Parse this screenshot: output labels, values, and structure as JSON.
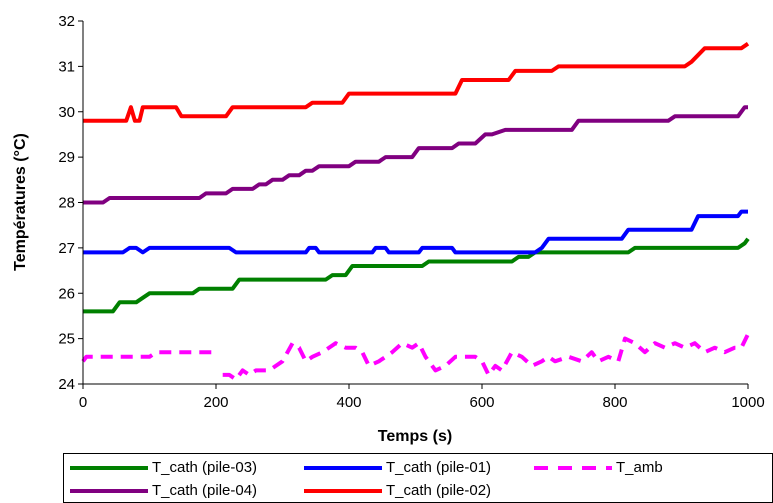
{
  "chart_data": {
    "type": "line",
    "title": "",
    "xlabel": "Temps (s)",
    "ylabel": "Températures (°C)",
    "xlim": [
      0,
      1000
    ],
    "ylim": [
      24,
      32
    ],
    "xticks": [
      "0",
      "200",
      "400",
      "600",
      "800",
      "1000"
    ],
    "yticks": [
      "24",
      "25",
      "26",
      "27",
      "28",
      "29",
      "30",
      "31",
      "32"
    ],
    "grid": false,
    "legend_position": "bottom",
    "series": [
      {
        "name": "T_cath (pile-03)",
        "color": "#008000",
        "style": "solid",
        "x": [
          0,
          45,
          55,
          80,
          90,
          100,
          165,
          175,
          225,
          235,
          365,
          375,
          395,
          405,
          510,
          520,
          645,
          655,
          670,
          680,
          820,
          830,
          985,
          995,
          1000
        ],
        "y": [
          25.6,
          25.6,
          25.8,
          25.8,
          25.9,
          26.0,
          26.0,
          26.1,
          26.1,
          26.3,
          26.3,
          26.4,
          26.4,
          26.6,
          26.6,
          26.7,
          26.7,
          26.8,
          26.8,
          26.9,
          26.9,
          27.0,
          27.0,
          27.1,
          27.2
        ]
      },
      {
        "name": "T_cath (pile-01)",
        "color": "#0000ff",
        "style": "solid",
        "x": [
          0,
          60,
          70,
          80,
          90,
          100,
          220,
          230,
          335,
          340,
          350,
          355,
          435,
          440,
          455,
          460,
          505,
          510,
          555,
          560,
          585,
          590,
          680,
          690,
          700,
          705,
          810,
          820,
          915,
          925,
          985,
          990,
          1000
        ],
        "y": [
          26.9,
          26.9,
          27.0,
          27.0,
          26.9,
          27.0,
          27.0,
          26.9,
          26.9,
          27.0,
          27.0,
          26.9,
          26.9,
          27.0,
          27.0,
          26.9,
          26.9,
          27.0,
          27.0,
          26.9,
          26.9,
          26.9,
          26.9,
          27.0,
          27.2,
          27.2,
          27.2,
          27.4,
          27.4,
          27.7,
          27.7,
          27.8,
          27.8
        ]
      },
      {
        "name": "T_cath (pile-04)",
        "color": "#800080",
        "style": "solid",
        "x": [
          0,
          30,
          40,
          175,
          185,
          215,
          225,
          255,
          265,
          275,
          285,
          300,
          310,
          325,
          335,
          345,
          355,
          375,
          385,
          400,
          410,
          445,
          455,
          495,
          505,
          555,
          565,
          590,
          605,
          615,
          635,
          645,
          735,
          745,
          880,
          890,
          985,
          995,
          1000
        ],
        "y": [
          28.0,
          28.0,
          28.1,
          28.1,
          28.2,
          28.2,
          28.3,
          28.3,
          28.4,
          28.4,
          28.5,
          28.5,
          28.6,
          28.6,
          28.7,
          28.7,
          28.8,
          28.8,
          28.8,
          28.8,
          28.9,
          28.9,
          29.0,
          29.0,
          29.2,
          29.2,
          29.3,
          29.3,
          29.5,
          29.5,
          29.6,
          29.6,
          29.6,
          29.8,
          29.8,
          29.9,
          29.9,
          30.1,
          30.1
        ]
      },
      {
        "name": "T_cath (pile-02)",
        "color": "#ff0000",
        "style": "solid",
        "x": [
          0,
          65,
          72,
          78,
          85,
          90,
          98,
          140,
          148,
          215,
          225,
          335,
          345,
          390,
          400,
          560,
          570,
          590,
          600,
          640,
          650,
          705,
          715,
          905,
          915,
          935,
          945,
          990,
          1000
        ],
        "y": [
          29.8,
          29.8,
          30.1,
          29.8,
          29.8,
          30.1,
          30.1,
          30.1,
          29.9,
          29.9,
          30.1,
          30.1,
          30.2,
          30.2,
          30.4,
          30.4,
          30.7,
          30.7,
          30.7,
          30.7,
          30.9,
          30.9,
          31.0,
          31.0,
          31.1,
          31.4,
          31.4,
          31.4,
          31.5
        ]
      },
      {
        "name": "T_amb",
        "color": "#ff00ff",
        "style": "dashed",
        "x": [
          0,
          5,
          50,
          60,
          100,
          110,
          195,
          200,
          210,
          220,
          230,
          240,
          250,
          260,
          270,
          280,
          300,
          315,
          325,
          335,
          345,
          360,
          380,
          395,
          410,
          420,
          430,
          445,
          455,
          465,
          480,
          495,
          505,
          515,
          530,
          545,
          560,
          590,
          600,
          610,
          620,
          630,
          645,
          660,
          675,
          690,
          700,
          710,
          730,
          750,
          765,
          775,
          790,
          805,
          815,
          830,
          845,
          860,
          875,
          890,
          905,
          920,
          935,
          950,
          965,
          980,
          990,
          1000
        ],
        "y": [
          24.5,
          24.6,
          24.6,
          24.6,
          24.6,
          24.7,
          24.7,
          null,
          24.2,
          24.2,
          24.1,
          24.3,
          24.2,
          24.3,
          24.3,
          24.3,
          24.5,
          24.9,
          24.8,
          24.5,
          24.6,
          24.7,
          24.9,
          24.8,
          24.8,
          24.7,
          24.4,
          24.5,
          24.6,
          24.7,
          24.9,
          24.8,
          24.9,
          24.6,
          24.3,
          24.4,
          24.6,
          24.6,
          24.5,
          24.2,
          24.4,
          24.3,
          24.7,
          24.6,
          24.4,
          24.5,
          24.6,
          24.5,
          24.6,
          24.5,
          24.7,
          24.5,
          24.6,
          24.5,
          25.0,
          24.9,
          24.7,
          24.9,
          24.8,
          24.9,
          24.8,
          24.9,
          24.7,
          24.8,
          24.7,
          24.8,
          24.8,
          25.1
        ]
      }
    ]
  }
}
